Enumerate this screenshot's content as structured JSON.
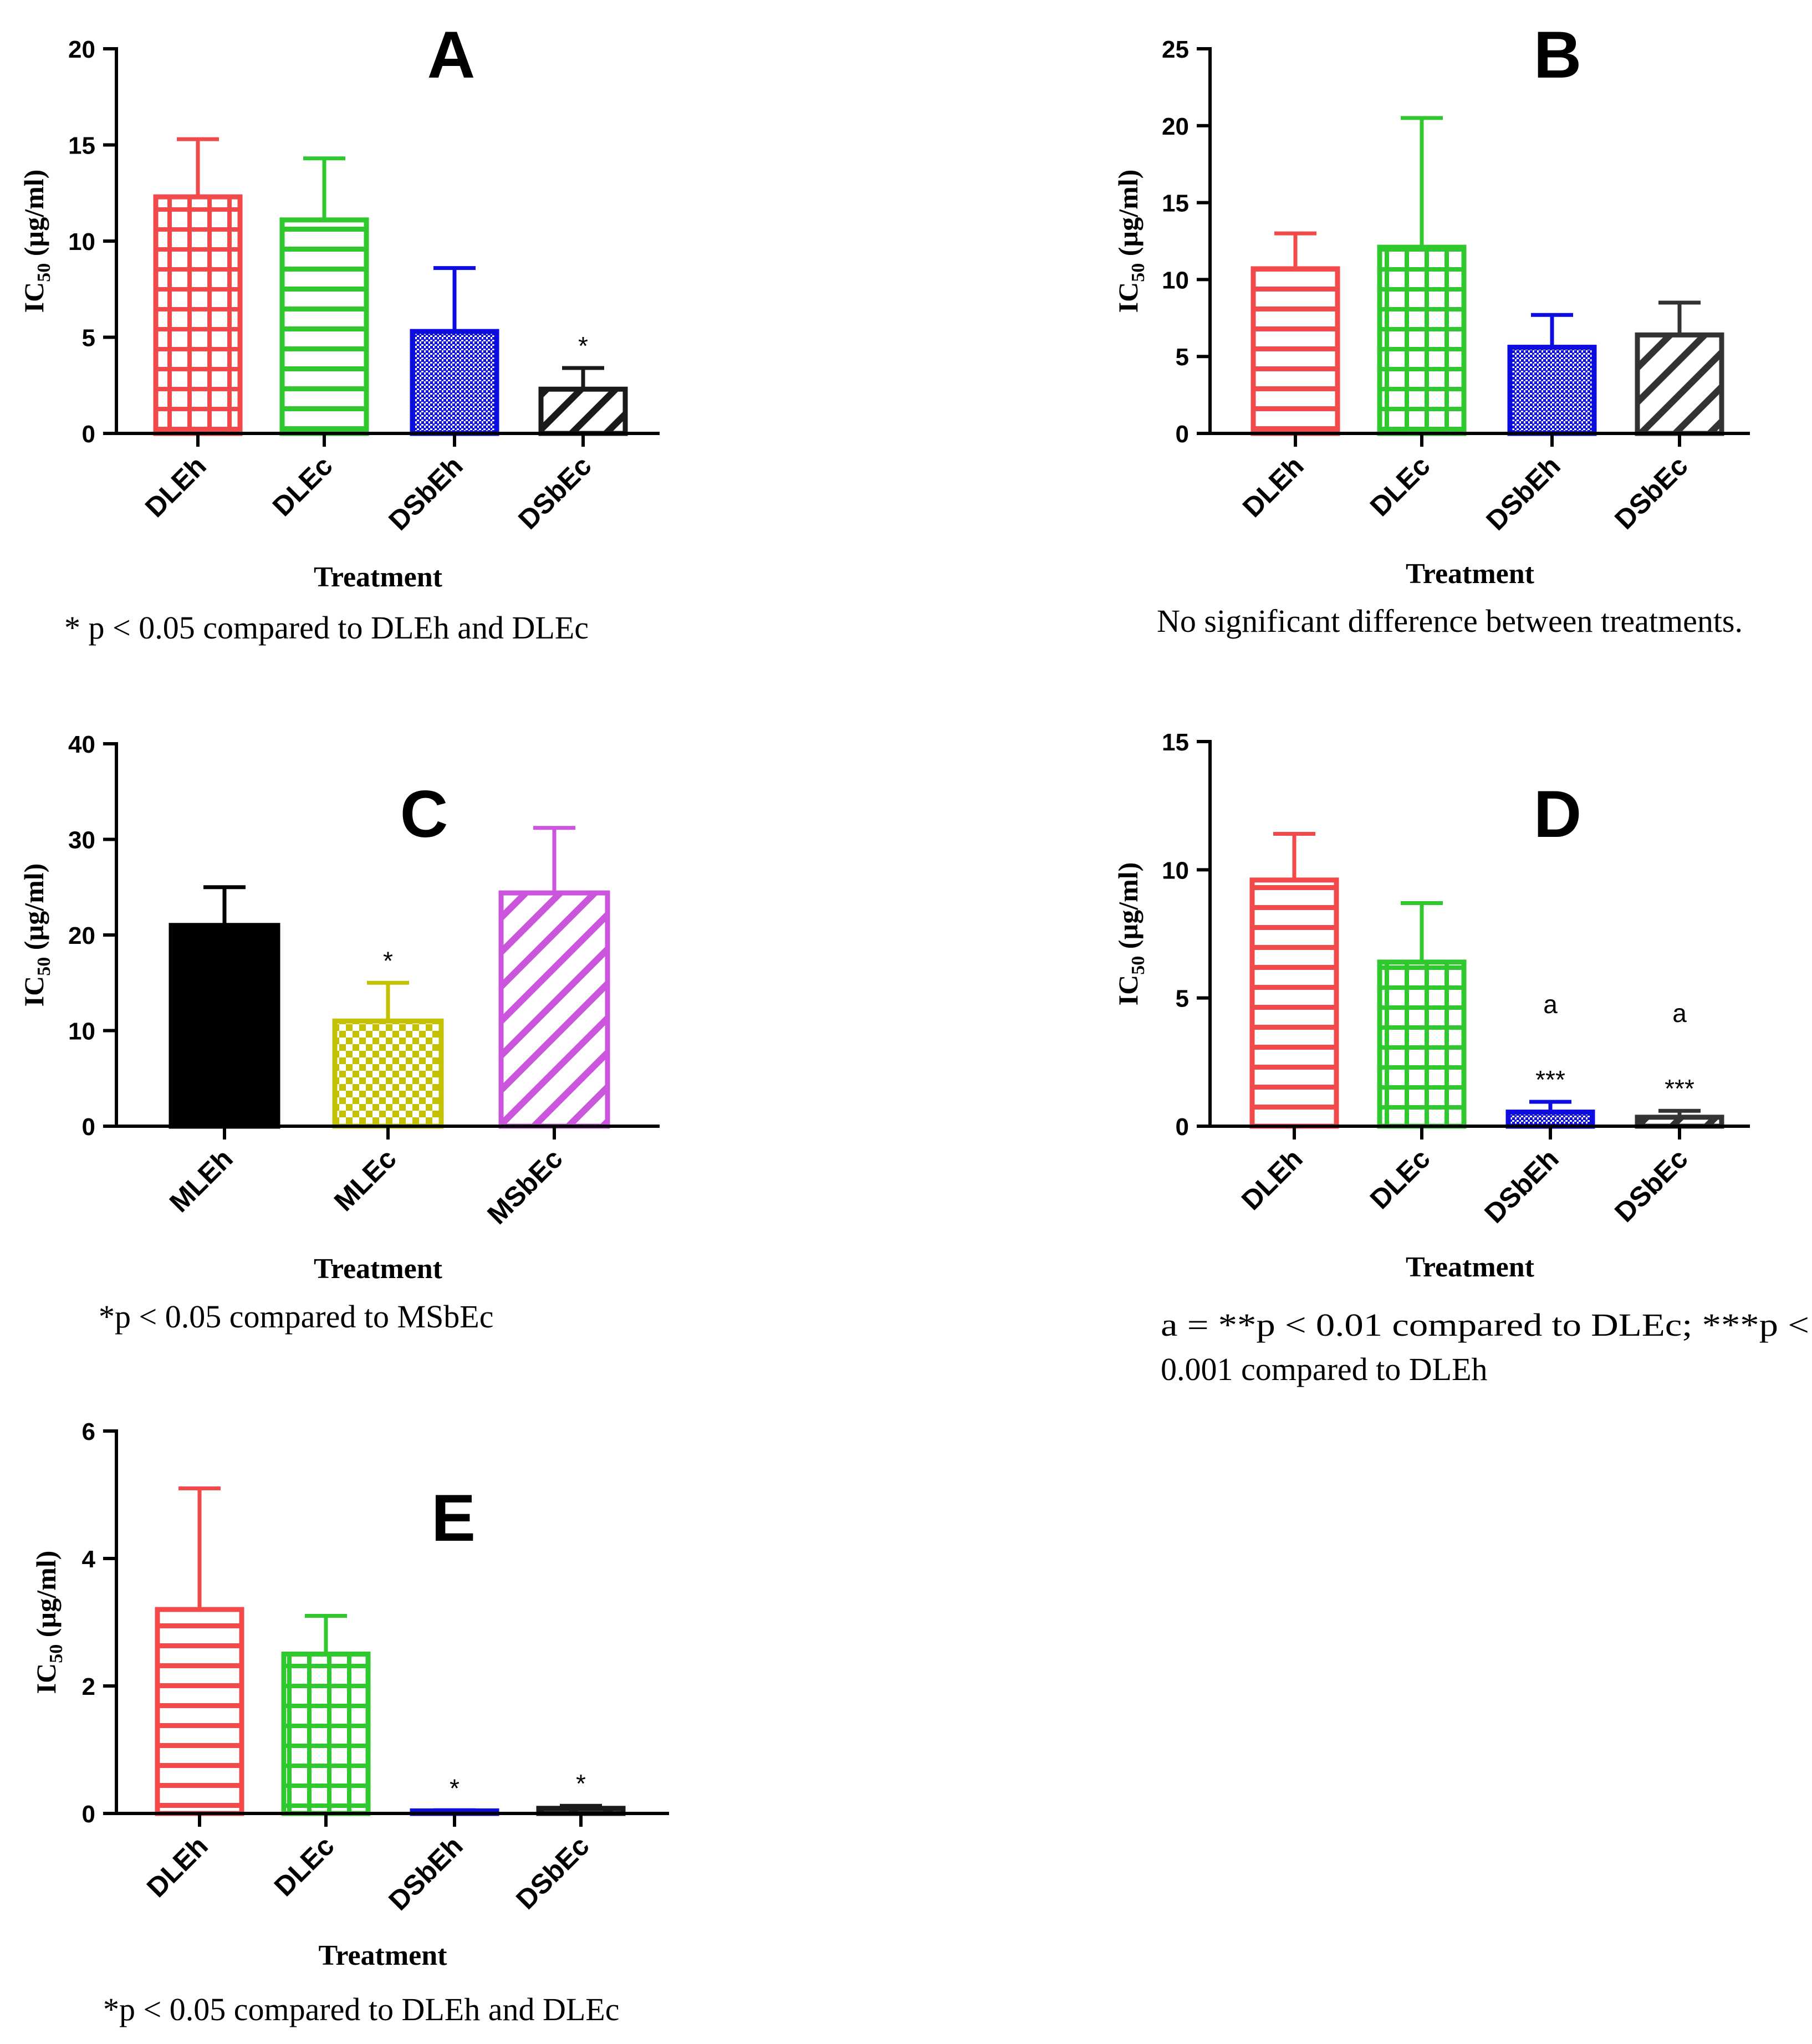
{
  "chart_data": [
    {
      "panel": "A",
      "type": "bar",
      "title": "A",
      "xlabel": "Treatment",
      "ylabel": {
        "main": "IC",
        "sub": "50",
        "rest": " (µg/ml)"
      },
      "ylim": [
        0,
        20
      ],
      "yticks": [
        0,
        5,
        10,
        15,
        20
      ],
      "categories": [
        "DLEh",
        "DLEc",
        "DSbEh",
        "DSbEc"
      ],
      "values": [
        12.3,
        11.1,
        5.3,
        2.3
      ],
      "errors": [
        3.0,
        3.2,
        3.3,
        1.1
      ],
      "colors": [
        "#f24a4a",
        "#2fc92f",
        "#0d0de0",
        "#1a1a1a"
      ],
      "patterns": [
        "grid",
        "hlines",
        "dots",
        "diag"
      ],
      "significance": [
        "",
        "",
        "",
        "*"
      ],
      "note": "* p < 0.05 compared to DLEh and DLEc"
    },
    {
      "panel": "B",
      "type": "bar",
      "title": "B",
      "xlabel": "Treatment",
      "ylabel": {
        "main": "IC",
        "sub": "50",
        "rest": " (µg/ml)"
      },
      "ylim": [
        0,
        25
      ],
      "yticks": [
        0,
        5,
        10,
        15,
        20,
        25
      ],
      "categories": [
        "DLEh",
        "DLEc",
        "DSbEh",
        "DSbEc"
      ],
      "values": [
        10.7,
        12.1,
        5.6,
        6.4
      ],
      "errors": [
        2.3,
        8.4,
        2.1,
        2.1
      ],
      "colors": [
        "#f24a4a",
        "#2fc92f",
        "#0d0de0",
        "#333333"
      ],
      "patterns": [
        "hlines",
        "grid",
        "dots",
        "diag"
      ],
      "significance": [
        "",
        "",
        "",
        ""
      ],
      "note": "No significant difference between treatments."
    },
    {
      "panel": "C",
      "type": "bar",
      "title": "C",
      "xlabel": "Treatment",
      "ylabel": {
        "main": "IC",
        "sub": "50",
        "rest": " (µg/ml)"
      },
      "ylim": [
        0,
        40
      ],
      "yticks": [
        0,
        10,
        20,
        30,
        40
      ],
      "categories": [
        "MLEh",
        "MLEc",
        "MSbEc"
      ],
      "values": [
        21.0,
        11.0,
        24.4
      ],
      "errors": [
        4.0,
        4.0,
        6.8
      ],
      "colors": [
        "#000000",
        "#c4c200",
        "#cc55dd"
      ],
      "patterns": [
        "solid",
        "checker",
        "diag"
      ],
      "significance": [
        "",
        "*",
        ""
      ],
      "note": "*p < 0.05 compared to MSbEc"
    },
    {
      "panel": "D",
      "type": "bar",
      "title": "D",
      "xlabel": "Treatment",
      "ylabel": {
        "main": "IC",
        "sub": "50",
        "rest": " (µg/ml)"
      },
      "ylim": [
        0,
        15
      ],
      "yticks": [
        0,
        5,
        10,
        15
      ],
      "categories": [
        "DLEh",
        "DLEc",
        "DSbEh",
        "DSbEc"
      ],
      "values": [
        9.6,
        6.4,
        0.55,
        0.35
      ],
      "errors": [
        1.8,
        2.3,
        0.4,
        0.25
      ],
      "colors": [
        "#f24a4a",
        "#2fc92f",
        "#0d0de0",
        "#333333"
      ],
      "patterns": [
        "hlines",
        "grid",
        "dots",
        "diag"
      ],
      "significance": [
        "",
        "",
        "***",
        "***"
      ],
      "letters": [
        "",
        "",
        "a",
        "a"
      ],
      "note": "a = **p < 0.01 compared to DLEc; ***p < 0.001 compared to DLEh"
    },
    {
      "panel": "E",
      "type": "bar",
      "title": "E",
      "xlabel": "Treatment",
      "ylabel": {
        "main": "IC",
        "sub": "50",
        "rest": " (µg/ml)"
      },
      "ylim": [
        0,
        6
      ],
      "yticks": [
        0,
        2,
        4,
        6
      ],
      "categories": [
        "DLEh",
        "DLEc",
        "DSbEh",
        "DSbEc"
      ],
      "values": [
        3.2,
        2.5,
        0.04,
        0.08
      ],
      "errors": [
        1.9,
        0.6,
        0.01,
        0.04
      ],
      "colors": [
        "#f24a4a",
        "#2fc92f",
        "#0d0de0",
        "#1a1a1a"
      ],
      "patterns": [
        "hlines",
        "grid",
        "dots",
        "diag"
      ],
      "significance": [
        "",
        "",
        "*",
        "*"
      ],
      "note": "*p < 0.05 compared to DLEh and DLEc"
    }
  ]
}
